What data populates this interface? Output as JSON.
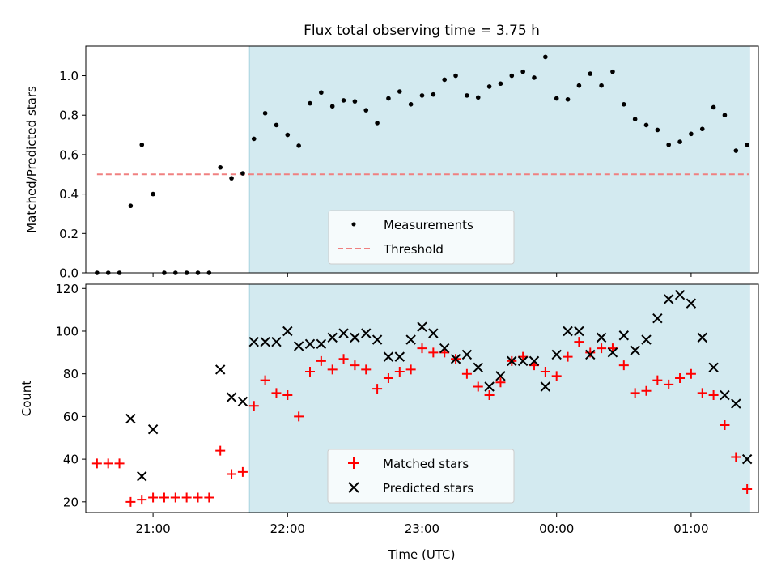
{
  "title": "Flux total observing time = 3.75 h",
  "colors": {
    "shade": "#d3eaf0",
    "measurement": "#000000",
    "threshold": "#f08080",
    "matched": "#ff0000",
    "predicted": "#000000"
  },
  "chart_data": [
    {
      "type": "scatter",
      "ylabel": "Matched/Predicted stars",
      "ylim": [
        0,
        1.15
      ],
      "yticks": [
        0.0,
        0.2,
        0.4,
        0.6,
        0.8,
        1.0
      ],
      "ytick_labels": [
        "0.0",
        "0.2",
        "0.4",
        "0.6",
        "0.8",
        "1.0"
      ],
      "shaded_interval": {
        "x": [
          "21:43",
          "25:26"
        ]
      },
      "threshold": {
        "name": "Threshold",
        "value": 0.5,
        "x": [
          "20:35",
          "25:26"
        ]
      },
      "legend": {
        "placement": "lower-center",
        "entries": [
          "Measurements",
          "Threshold"
        ]
      },
      "series": [
        {
          "name": "Measurements",
          "marker": "dot",
          "points": [
            [
              "20:35",
              0.0
            ],
            [
              "20:40",
              0.0
            ],
            [
              "20:45",
              0.0
            ],
            [
              "20:50",
              0.34
            ],
            [
              "20:55",
              0.65
            ],
            [
              "21:00",
              0.4
            ],
            [
              "21:05",
              0.0
            ],
            [
              "21:10",
              0.0
            ],
            [
              "21:15",
              0.0
            ],
            [
              "21:20",
              0.0
            ],
            [
              "21:25",
              0.0
            ],
            [
              "21:30",
              0.535
            ],
            [
              "21:35",
              0.48
            ],
            [
              "21:40",
              0.505
            ],
            [
              "21:45",
              0.68
            ],
            [
              "21:50",
              0.81
            ],
            [
              "21:55",
              0.75
            ],
            [
              "22:00",
              0.7
            ],
            [
              "22:05",
              0.645
            ],
            [
              "22:10",
              0.86
            ],
            [
              "22:15",
              0.915
            ],
            [
              "22:20",
              0.845
            ],
            [
              "22:25",
              0.875
            ],
            [
              "22:30",
              0.87
            ],
            [
              "22:35",
              0.825
            ],
            [
              "22:40",
              0.76
            ],
            [
              "22:45",
              0.885
            ],
            [
              "22:50",
              0.92
            ],
            [
              "22:55",
              0.855
            ],
            [
              "23:00",
              0.9
            ],
            [
              "23:05",
              0.905
            ],
            [
              "23:10",
              0.98
            ],
            [
              "23:15",
              1.0
            ],
            [
              "23:20",
              0.9
            ],
            [
              "23:25",
              0.89
            ],
            [
              "23:30",
              0.945
            ],
            [
              "23:35",
              0.96
            ],
            [
              "23:40",
              1.0
            ],
            [
              "23:45",
              1.02
            ],
            [
              "23:50",
              0.99
            ],
            [
              "23:55",
              1.095
            ],
            [
              "24:00",
              0.885
            ],
            [
              "24:05",
              0.88
            ],
            [
              "24:10",
              0.95
            ],
            [
              "24:15",
              1.01
            ],
            [
              "24:20",
              0.95
            ],
            [
              "24:25",
              1.02
            ],
            [
              "24:30",
              0.855
            ],
            [
              "24:35",
              0.78
            ],
            [
              "24:40",
              0.75
            ],
            [
              "24:45",
              0.725
            ],
            [
              "24:50",
              0.65
            ],
            [
              "24:55",
              0.665
            ],
            [
              "25:00",
              0.705
            ],
            [
              "25:05",
              0.73
            ],
            [
              "25:10",
              0.84
            ],
            [
              "25:15",
              0.8
            ],
            [
              "25:20",
              0.62
            ],
            [
              "25:25",
              0.65
            ]
          ]
        }
      ]
    },
    {
      "type": "scatter",
      "xlabel": "Time (UTC)",
      "ylabel": "Count",
      "ylim": [
        15,
        122
      ],
      "yticks": [
        20,
        40,
        60,
        80,
        100,
        120
      ],
      "ytick_labels": [
        "20",
        "40",
        "60",
        "80",
        "100",
        "120"
      ],
      "xlim": [
        "20:30",
        "25:30"
      ],
      "xticks": [
        "21:00",
        "22:00",
        "23:00",
        "24:00",
        "25:00"
      ],
      "xtick_labels": [
        "21:00",
        "22:00",
        "23:00",
        "00:00",
        "01:00"
      ],
      "shaded_interval": {
        "x": [
          "21:43",
          "25:26"
        ]
      },
      "legend": {
        "placement": "lower-center",
        "entries": [
          "Matched stars",
          "Predicted stars"
        ]
      },
      "series": [
        {
          "name": "Matched stars",
          "marker": "plus",
          "points": [
            [
              "20:35",
              38
            ],
            [
              "20:40",
              38
            ],
            [
              "20:45",
              38
            ],
            [
              "20:50",
              20
            ],
            [
              "20:55",
              21
            ],
            [
              "21:00",
              22
            ],
            [
              "21:05",
              22
            ],
            [
              "21:10",
              22
            ],
            [
              "21:15",
              22
            ],
            [
              "21:20",
              22
            ],
            [
              "21:25",
              22
            ],
            [
              "21:30",
              44
            ],
            [
              "21:35",
              33
            ],
            [
              "21:40",
              34
            ],
            [
              "21:45",
              65
            ],
            [
              "21:50",
              77
            ],
            [
              "21:55",
              71
            ],
            [
              "22:00",
              70
            ],
            [
              "22:05",
              60
            ],
            [
              "22:10",
              81
            ],
            [
              "22:15",
              86
            ],
            [
              "22:20",
              82
            ],
            [
              "22:25",
              87
            ],
            [
              "22:30",
              84
            ],
            [
              "22:35",
              82
            ],
            [
              "22:40",
              73
            ],
            [
              "22:45",
              78
            ],
            [
              "22:50",
              81
            ],
            [
              "22:55",
              82
            ],
            [
              "23:00",
              92
            ],
            [
              "23:05",
              90
            ],
            [
              "23:10",
              90
            ],
            [
              "23:15",
              87
            ],
            [
              "23:20",
              80
            ],
            [
              "23:25",
              74
            ],
            [
              "23:30",
              70
            ],
            [
              "23:35",
              76
            ],
            [
              "23:40",
              86
            ],
            [
              "23:45",
              88
            ],
            [
              "23:50",
              84
            ],
            [
              "23:55",
              81
            ],
            [
              "24:00",
              79
            ],
            [
              "24:05",
              88
            ],
            [
              "24:10",
              95
            ],
            [
              "24:15",
              90
            ],
            [
              "24:20",
              92
            ],
            [
              "24:25",
              92
            ],
            [
              "24:30",
              84
            ],
            [
              "24:35",
              71
            ],
            [
              "24:40",
              72
            ],
            [
              "24:45",
              77
            ],
            [
              "24:50",
              75
            ],
            [
              "24:55",
              78
            ],
            [
              "25:00",
              80
            ],
            [
              "25:05",
              71
            ],
            [
              "25:10",
              70
            ],
            [
              "25:15",
              56
            ],
            [
              "25:20",
              41
            ],
            [
              "25:25",
              26
            ]
          ]
        },
        {
          "name": "Predicted stars",
          "marker": "x",
          "points": [
            [
              "20:50",
              59
            ],
            [
              "20:55",
              32
            ],
            [
              "21:00",
              54
            ],
            [
              "21:30",
              82
            ],
            [
              "21:35",
              69
            ],
            [
              "21:40",
              67
            ],
            [
              "21:45",
              95
            ],
            [
              "21:50",
              95
            ],
            [
              "21:55",
              95
            ],
            [
              "22:00",
              100
            ],
            [
              "22:05",
              93
            ],
            [
              "22:10",
              94
            ],
            [
              "22:15",
              94
            ],
            [
              "22:20",
              97
            ],
            [
              "22:25",
              99
            ],
            [
              "22:30",
              97
            ],
            [
              "22:35",
              99
            ],
            [
              "22:40",
              96
            ],
            [
              "22:45",
              88
            ],
            [
              "22:50",
              88
            ],
            [
              "22:55",
              96
            ],
            [
              "23:00",
              102
            ],
            [
              "23:05",
              99
            ],
            [
              "23:10",
              92
            ],
            [
              "23:15",
              87
            ],
            [
              "23:20",
              89
            ],
            [
              "23:25",
              83
            ],
            [
              "23:30",
              74
            ],
            [
              "23:35",
              79
            ],
            [
              "23:40",
              86
            ],
            [
              "23:45",
              86
            ],
            [
              "23:50",
              86
            ],
            [
              "23:55",
              74
            ],
            [
              "24:00",
              89
            ],
            [
              "24:05",
              100
            ],
            [
              "24:10",
              100
            ],
            [
              "24:15",
              89
            ],
            [
              "24:20",
              97
            ],
            [
              "24:25",
              90
            ],
            [
              "24:30",
              98
            ],
            [
              "24:35",
              91
            ],
            [
              "24:40",
              96
            ],
            [
              "24:45",
              106
            ],
            [
              "24:50",
              115
            ],
            [
              "24:55",
              117
            ],
            [
              "25:00",
              113
            ],
            [
              "25:05",
              97
            ],
            [
              "25:10",
              83
            ],
            [
              "25:15",
              70
            ],
            [
              "25:20",
              66
            ],
            [
              "25:25",
              40
            ]
          ]
        }
      ]
    }
  ]
}
